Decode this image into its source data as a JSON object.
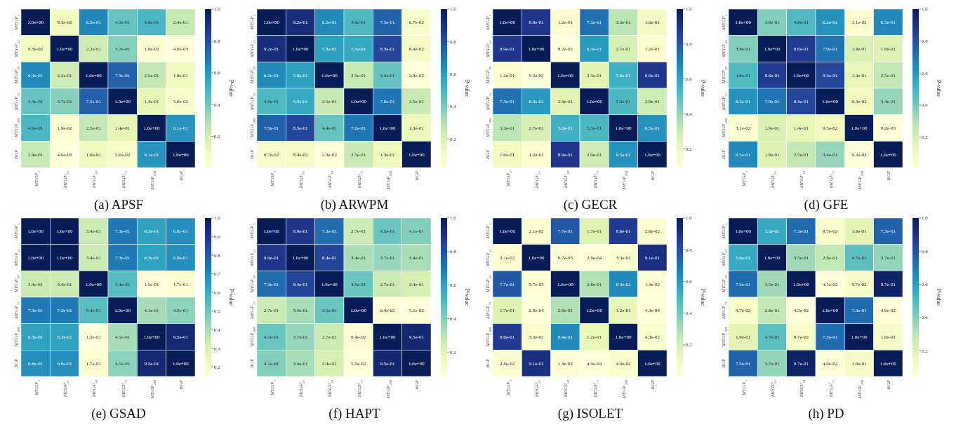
{
  "chart_data": [
    {
      "type": "heatmap",
      "title": "(a) APSF",
      "clabel": "P-value",
      "categories": [
        "MEGP$_{5}$",
        "MEGP$_{25}$",
        "MEGP$_{50}$",
        "MEGP$_{75}$",
        "MEGP$_{100}$",
        "BGP"
      ],
      "y_categories": [
        "MEGP$_{5}$",
        "MEGP$_{25}$",
        "MEGP$_{50}$",
        "MEGP$_{75}$",
        "MEGP$_{100}$",
        "BGP"
      ],
      "cells": [
        [
          1.0,
          0.093,
          0.65,
          0.43,
          0.49,
          0.24
        ],
        [
          0.093,
          1.0,
          0.22,
          0.37,
          0.019,
          0.0046
        ],
        [
          0.64,
          0.22,
          1.0,
          0.75,
          0.25,
          0.1
        ],
        [
          0.43,
          0.37,
          0.75,
          1.0,
          0.14,
          0.05
        ],
        [
          0.49,
          0.019,
          0.25,
          0.14,
          1.0,
          0.61
        ],
        [
          0.24,
          0.0046,
          0.1,
          0.05,
          0.61,
          1.0
        ]
      ],
      "cell_labels": [
        [
          "1.0e+00",
          "9.3e-02",
          "6.5e-01",
          "4.3e-01",
          "4.9e-01",
          "2.4e-01"
        ],
        [
          "9.3e-02",
          "1.0e+00",
          "2.2e-01",
          "3.7e-01",
          "1.9e-02",
          "4.6e-03"
        ],
        [
          "6.4e-01",
          "2.2e-01",
          "1.0e+00",
          "7.5e-01",
          "2.5e-01",
          "1.0e-01"
        ],
        [
          "4.3e-01",
          "3.7e-01",
          "7.5e-01",
          "1.0e+00",
          "1.4e-01",
          "5.0e-02"
        ],
        [
          "4.9e-01",
          "1.9e-02",
          "2.5e-01",
          "1.4e-01",
          "1.0e+00",
          "6.1e-01"
        ],
        [
          "2.4e-01",
          "4.6e-03",
          "1.0e-01",
          "5.0e-02",
          "6.1e-01",
          "1.0e+00"
        ]
      ],
      "clim": [
        0.0046,
        1.0
      ],
      "cticks": [
        {
          "value": 0.2,
          "label": "0.2"
        },
        {
          "value": 0.4,
          "label": "0.4"
        },
        {
          "value": 0.6,
          "label": "0.6"
        },
        {
          "value": 0.8,
          "label": "0.8"
        },
        {
          "value": 1.0,
          "label": "1.0"
        }
      ]
    },
    {
      "type": "heatmap",
      "title": "(b) ARWPM",
      "clabel": "P-value",
      "categories": [
        "MEGP$_{5}$",
        "MEGP$_{25}$",
        "MEGP$_{50}$",
        "MEGP$_{75}$",
        "MEGP$_{100}$",
        "BGP"
      ],
      "y_categories": [
        "MEGP$_{5}$",
        "MEGP$_{25}$",
        "MEGP$_{50}$",
        "MEGP$_{75}$",
        "MEGP$_{100}$",
        "BGP"
      ],
      "cells": [
        [
          1.0,
          0.92,
          0.65,
          0.49,
          0.75,
          0.067
        ],
        [
          0.92,
          1.0,
          0.58,
          0.55,
          0.83,
          0.084
        ],
        [
          0.65,
          0.58,
          1.0,
          0.25,
          0.44,
          0.023
        ],
        [
          0.49,
          0.55,
          0.25,
          1.0,
          0.7,
          0.25
        ],
        [
          0.75,
          0.83,
          0.44,
          0.7,
          1.0,
          0.13
        ],
        [
          0.067,
          0.084,
          0.023,
          0.25,
          0.13,
          1.0
        ]
      ],
      "cell_labels": [
        [
          "1.0e+00",
          "9.2e-01",
          "6.5e-01",
          "4.9e-01",
          "7.5e-01",
          "6.7e-02"
        ],
        [
          "9.2e-01",
          "1.0e+00",
          "5.8e-01",
          "5.5e-01",
          "8.3e-01",
          "8.4e-02"
        ],
        [
          "6.5e-01",
          "5.8e-01",
          "1.0e+00",
          "2.5e-01",
          "4.4e-01",
          "2.3e-02"
        ],
        [
          "4.9e-01",
          "5.5e-01",
          "2.5e-01",
          "1.0e+00",
          "7.0e-01",
          "2.5e-01"
        ],
        [
          "7.5e-01",
          "8.3e-01",
          "4.4e-01",
          "7.0e-01",
          "1.0e+00",
          "1.3e-01"
        ],
        [
          "6.7e-02",
          "8.4e-02",
          "2.3e-02",
          "2.5e-01",
          "1.3e-01",
          "1.0e+00"
        ]
      ],
      "clim": [
        0.023,
        1.0
      ],
      "cticks": [
        {
          "value": 0.2,
          "label": "0.2"
        },
        {
          "value": 0.4,
          "label": "0.4"
        },
        {
          "value": 0.6,
          "label": "0.6"
        },
        {
          "value": 0.8,
          "label": "0.8"
        },
        {
          "value": 1.0,
          "label": "1.0"
        }
      ]
    },
    {
      "type": "heatmap",
      "title": "(c) GECR",
      "clabel": "P-value",
      "categories": [
        "MEGP$_{5}$",
        "MEGP$_{25}$",
        "MEGP$_{50}$",
        "MEGP$_{75}$",
        "MEGP$_{100}$",
        "BGP"
      ],
      "y_categories": [
        "MEGP$_{5}$",
        "MEGP$_{25}$",
        "MEGP$_{50}$",
        "MEGP$_{75}$",
        "MEGP$_{100}$",
        "BGP"
      ],
      "cells": [
        [
          1.0,
          0.89,
          0.12,
          0.73,
          0.33,
          0.16
        ],
        [
          0.89,
          1.0,
          0.092,
          0.63,
          0.27,
          0.12
        ],
        [
          0.12,
          0.092,
          1.0,
          0.23,
          0.56,
          0.89
        ],
        [
          0.73,
          0.63,
          0.23,
          1.0,
          0.53,
          0.29
        ],
        [
          0.33,
          0.27,
          0.56,
          0.53,
          1.0,
          0.65
        ],
        [
          0.16,
          0.12,
          0.89,
          0.29,
          0.65,
          1.0
        ]
      ],
      "cell_labels": [
        [
          "1.0e+00",
          "8.9e-01",
          "1.2e-01",
          "7.3e-01",
          "3.3e-01",
          "1.6e-01"
        ],
        [
          "8.9e-01",
          "1.0e+00",
          "9.2e-02",
          "6.3e-01",
          "2.7e-01",
          "1.2e-01"
        ],
        [
          "1.2e-01",
          "9.2e-02",
          "1.0e+00",
          "2.3e-01",
          "5.6e-01",
          "8.9e-01"
        ],
        [
          "7.3e-01",
          "6.3e-01",
          "2.3e-01",
          "1.0e+00",
          "5.3e-01",
          "2.9e-01"
        ],
        [
          "3.3e-01",
          "2.7e-01",
          "5.6e-01",
          "5.3e-01",
          "1.0e+00",
          "6.5e-01"
        ],
        [
          "1.6e-01",
          "1.2e-01",
          "8.9e-01",
          "2.9e-01",
          "6.5e-01",
          "1.0e+00"
        ]
      ],
      "clim": [
        0.092,
        1.0
      ],
      "cticks": [
        {
          "value": 0.2,
          "label": "0.2"
        },
        {
          "value": 0.4,
          "label": "0.4"
        },
        {
          "value": 0.6,
          "label": "0.6"
        },
        {
          "value": 0.8,
          "label": "0.8"
        },
        {
          "value": 1.0,
          "label": "1.0"
        }
      ]
    },
    {
      "type": "heatmap",
      "title": "(d) GFE",
      "clabel": "P-value",
      "categories": [
        "MEGP$_{5}$",
        "MEGP$_{25}$",
        "MEGP$_{50}$",
        "MEGP$_{75}$",
        "MEGP$_{100}$",
        "BGP"
      ],
      "y_categories": [
        "MEGP$_{5}$",
        "MEGP$_{25}$",
        "MEGP$_{50}$",
        "MEGP$_{75}$",
        "MEGP$_{100}$",
        "BGP"
      ],
      "cells": [
        [
          1.0,
          0.38,
          0.48,
          0.62,
          0.031,
          0.65
        ],
        [
          0.38,
          1.0,
          0.86,
          0.7,
          0.19,
          0.18
        ],
        [
          0.48,
          0.86,
          1.0,
          0.83,
          0.14,
          0.25
        ],
        [
          0.62,
          0.7,
          0.83,
          1.0,
          0.093,
          0.34
        ],
        [
          0.031,
          0.19,
          0.14,
          0.093,
          1.0,
          0.0092
        ],
        [
          0.65,
          0.18,
          0.25,
          0.34,
          0.0092,
          1.0
        ]
      ],
      "cell_labels": [
        [
          "1.0e+00",
          "3.8e-01",
          "4.8e-01",
          "6.2e-01",
          "3.1e-02",
          "6.5e-01"
        ],
        [
          "3.8e-01",
          "1.0e+00",
          "8.6e-01",
          "7.0e-01",
          "1.9e-01",
          "1.8e-01"
        ],
        [
          "4.8e-01",
          "8.6e-01",
          "1.0e+00",
          "8.3e-01",
          "1.4e-01",
          "2.5e-01"
        ],
        [
          "6.2e-01",
          "7.0e-01",
          "8.3e-01",
          "1.0e+00",
          "9.3e-02",
          "3.4e-01"
        ],
        [
          "3.1e-02",
          "1.9e-01",
          "1.4e-01",
          "9.3e-02",
          "1.0e+00",
          "9.2e-03"
        ],
        [
          "6.5e-01",
          "1.8e-01",
          "2.5e-01",
          "3.4e-01",
          "9.2e-03",
          "1.0e+00"
        ]
      ],
      "clim": [
        0.0092,
        1.0
      ],
      "cticks": [
        {
          "value": 0.2,
          "label": "0.2"
        },
        {
          "value": 0.4,
          "label": "0.4"
        },
        {
          "value": 0.6,
          "label": "0.6"
        },
        {
          "value": 0.8,
          "label": "0.8"
        },
        {
          "value": 1.0,
          "label": "1.0"
        }
      ]
    },
    {
      "type": "heatmap",
      "title": "(e) GSAD",
      "clabel": "P-value",
      "categories": [
        "MEGP$_{5}$",
        "MEGP$_{25}$",
        "MEGP$_{50}$",
        "MEGP$_{75}$",
        "MEGP$_{100}$",
        "BGP"
      ],
      "y_categories": [
        "MEGP$_{5}$",
        "MEGP$_{25}$",
        "MEGP$_{50}$",
        "MEGP$_{75}$",
        "MEGP$_{100}$",
        "BGP"
      ],
      "cells": [
        [
          1.0,
          1.0,
          0.34,
          0.73,
          0.63,
          0.68
        ],
        [
          1.0,
          1.0,
          0.34,
          0.73,
          0.63,
          0.68
        ],
        [
          0.34,
          0.34,
          1.0,
          0.54,
          0.15,
          0.17
        ],
        [
          0.73,
          0.73,
          0.54,
          1.0,
          0.41,
          0.45
        ],
        [
          0.63,
          0.63,
          0.15,
          0.41,
          1.0,
          0.95
        ],
        [
          0.68,
          0.68,
          0.17,
          0.45,
          0.95,
          1.0
        ]
      ],
      "cell_labels": [
        [
          "1.0e+00",
          "1.0e+00",
          "3.4e-01",
          "7.3e-01",
          "6.3e-01",
          "6.8e-01"
        ],
        [
          "1.0e+00",
          "1.0e+00",
          "3.4e-01",
          "7.3e-01",
          "6.3e-01",
          "6.8e-01"
        ],
        [
          "3.4e-01",
          "3.4e-01",
          "1.0e+00",
          "5.4e-01",
          "1.5e-01",
          "1.7e-01"
        ],
        [
          "7.3e-01",
          "7.3e-01",
          "5.4e-01",
          "1.0e+00",
          "4.1e-01",
          "4.5e-01"
        ],
        [
          "6.3e-01",
          "6.3e-01",
          "1.5e-01",
          "4.1e-01",
          "1.0e+00",
          "9.5e-01"
        ],
        [
          "6.8e-01",
          "6.8e-01",
          "1.7e-01",
          "4.5e-01",
          "9.5e-01",
          "1.0e+00"
        ]
      ],
      "clim": [
        0.15,
        1.0
      ],
      "cticks": [
        {
          "value": 0.2,
          "label": "0.2"
        },
        {
          "value": 0.3,
          "label": "0.3"
        },
        {
          "value": 0.4,
          "label": "0.4"
        },
        {
          "value": 0.5,
          "label": "0.5"
        },
        {
          "value": 0.6,
          "label": "0.6"
        },
        {
          "value": 0.7,
          "label": "0.7"
        },
        {
          "value": 0.8,
          "label": "0.8"
        },
        {
          "value": 0.9,
          "label": "0.9"
        },
        {
          "value": 1.0,
          "label": "1.0"
        }
      ]
    },
    {
      "type": "heatmap",
      "title": "(f) HAPT",
      "clabel": "P-value",
      "categories": [
        "MEGP$_{5}$",
        "MEGP$_{25}$",
        "MEGP$_{50}$",
        "MEGP$_{75}$",
        "MEGP$_{100}$",
        "BGP"
      ],
      "y_categories": [
        "MEGP$_{5}$",
        "MEGP$_{25}$",
        "MEGP$_{50}$",
        "MEGP$_{75}$",
        "MEGP$_{100}$",
        "BGP"
      ],
      "cells": [
        [
          1.0,
          0.89,
          0.73,
          0.27,
          0.45,
          0.41
        ],
        [
          0.89,
          1.0,
          0.84,
          0.34,
          0.37,
          0.34
        ],
        [
          0.73,
          0.84,
          1.0,
          0.45,
          0.27,
          0.24
        ],
        [
          0.27,
          0.34,
          0.45,
          1.0,
          0.064,
          0.055
        ],
        [
          0.45,
          0.37,
          0.27,
          0.064,
          1.0,
          0.95
        ],
        [
          0.41,
          0.34,
          0.24,
          0.055,
          0.95,
          1.0
        ]
      ],
      "cell_labels": [
        [
          "1.0e+00",
          "8.9e-01",
          "7.3e-01",
          "2.7e-01",
          "4.5e-01",
          "4.1e-01"
        ],
        [
          "8.9e-01",
          "1.0e+00",
          "8.4e-01",
          "3.4e-01",
          "3.7e-01",
          "3.4e-01"
        ],
        [
          "7.3e-01",
          "8.4e-01",
          "1.0e+00",
          "4.5e-01",
          "2.7e-01",
          "2.4e-01"
        ],
        [
          "2.7e-01",
          "3.4e-01",
          "4.5e-01",
          "1.0e+00",
          "6.4e-02",
          "5.5e-02"
        ],
        [
          "4.5e-01",
          "3.7e-01",
          "2.7e-01",
          "6.4e-02",
          "1.0e+00",
          "9.5e-01"
        ],
        [
          "4.1e-01",
          "3.4e-01",
          "2.4e-01",
          "5.5e-02",
          "9.5e-01",
          "1.0e+00"
        ]
      ],
      "clim": [
        0.055,
        1.0
      ],
      "cticks": [
        {
          "value": 0.2,
          "label": "0.2"
        },
        {
          "value": 0.4,
          "label": "0.4"
        },
        {
          "value": 0.6,
          "label": "0.6"
        },
        {
          "value": 0.8,
          "label": "0.8"
        },
        {
          "value": 1.0,
          "label": "1.0"
        }
      ]
    },
    {
      "type": "heatmap",
      "title": "(g) ISOLET",
      "clabel": "P-value",
      "categories": [
        "MEGP$_{5}$",
        "MEGP$_{25}$",
        "MEGP$_{50}$",
        "MEGP$_{75}$",
        "MEGP$_{100}$",
        "BGP"
      ],
      "y_categories": [
        "MEGP$_{5}$",
        "MEGP$_{25}$",
        "MEGP$_{50}$",
        "MEGP$_{75}$",
        "MEGP$_{100}$",
        "BGP"
      ],
      "cells": [
        [
          1.0,
          0.021,
          0.77,
          0.17,
          0.86,
          0.028
        ],
        [
          0.021,
          1.0,
          0.0097,
          0.00029,
          0.033,
          0.91
        ],
        [
          0.77,
          0.0097,
          1.0,
          0.28,
          0.64,
          0.013
        ],
        [
          0.17,
          0.00029,
          0.28,
          1.0,
          0.12,
          0.00043
        ],
        [
          0.86,
          0.033,
          0.64,
          0.12,
          1.0,
          0.043
        ],
        [
          0.028,
          0.91,
          0.013,
          0.00043,
          0.043,
          1.0
        ]
      ],
      "cell_labels": [
        [
          "1.0e+00",
          "2.1e-02",
          "7.7e-01",
          "1.7e-01",
          "8.6e-01",
          "2.8e-02"
        ],
        [
          "2.1e-02",
          "1.0e+00",
          "9.7e-03",
          "2.9e-04",
          "3.3e-02",
          "9.1e-01"
        ],
        [
          "7.7e-01",
          "9.7e-03",
          "1.0e+00",
          "2.8e-01",
          "6.4e-01",
          "1.3e-02"
        ],
        [
          "1.7e-01",
          "2.9e-04",
          "2.8e-01",
          "1.0e+00",
          "1.2e-01",
          "4.3e-04"
        ],
        [
          "8.6e-01",
          "3.3e-02",
          "6.4e-01",
          "1.2e-01",
          "1.0e+00",
          "4.3e-02"
        ],
        [
          "2.8e-02",
          "9.1e-01",
          "1.3e-02",
          "4.3e-04",
          "4.3e-02",
          "1.0e+00"
        ]
      ],
      "clim": [
        0.00029,
        1.0
      ],
      "cticks": [
        {
          "value": 0.2,
          "label": "0.2"
        },
        {
          "value": 0.4,
          "label": "0.4"
        },
        {
          "value": 0.6,
          "label": "0.6"
        },
        {
          "value": 0.8,
          "label": "0.8"
        },
        {
          "value": 1.0,
          "label": "1.0"
        }
      ]
    },
    {
      "type": "heatmap",
      "title": "(h) PD",
      "clabel": "P-value",
      "categories": [
        "MEGP$_{5}$",
        "MEGP$_{25}$",
        "MEGP$_{50}$",
        "MEGP$_{75}$",
        "MEGP$_{100}$",
        "BGP"
      ],
      "y_categories": [
        "MEGP$_{5}$",
        "MEGP$_{25}$",
        "MEGP$_{50}$",
        "MEGP$_{75}$",
        "MEGP$_{100}$",
        "BGP"
      ],
      "cells": [
        [
          1.0,
          0.56,
          0.73,
          0.097,
          0.19,
          0.75
        ],
        [
          0.56,
          1.0,
          0.35,
          0.28,
          0.47,
          0.37
        ],
        [
          0.73,
          0.35,
          1.0,
          0.045,
          0.097,
          0.97
        ],
        [
          0.097,
          0.28,
          0.045,
          1.0,
          0.73,
          0.049
        ],
        [
          0.19,
          0.47,
          0.097,
          0.73,
          1.0,
          0.1
        ],
        [
          0.75,
          0.37,
          0.97,
          0.049,
          0.1,
          1.0
        ]
      ],
      "cell_labels": [
        [
          "1.0e+00",
          "5.6e-01",
          "7.3e-01",
          "9.7e-02",
          "1.9e-01",
          "7.5e-01"
        ],
        [
          "5.6e-01",
          "1.0e+00",
          "3.5e-01",
          "2.8e-01",
          "4.7e-01",
          "3.7e-01"
        ],
        [
          "7.3e-01",
          "3.5e-01",
          "1.0e+00",
          "4.5e-02",
          "9.7e-02",
          "9.7e-01"
        ],
        [
          "9.7e-02",
          "2.8e-01",
          "4.5e-02",
          "1.0e+00",
          "7.3e-01",
          "4.9e-02"
        ],
        [
          "1.9e-01",
          "4.7e-01",
          "9.7e-02",
          "7.3e-01",
          "1.0e+00",
          "1.0e-01"
        ],
        [
          "7.5e-01",
          "3.7e-01",
          "9.7e-01",
          "4.9e-02",
          "1.0e-01",
          "1.0e+00"
        ]
      ],
      "clim": [
        0.045,
        1.0
      ],
      "cticks": [
        {
          "value": 0.2,
          "label": "0.2"
        },
        {
          "value": 0.4,
          "label": "0.4"
        },
        {
          "value": 0.6,
          "label": "0.6"
        },
        {
          "value": 0.8,
          "label": "0.8"
        },
        {
          "value": 1.0,
          "label": "1.0"
        }
      ]
    }
  ]
}
